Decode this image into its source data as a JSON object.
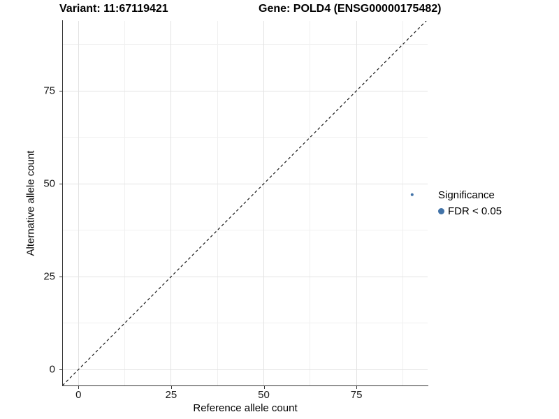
{
  "chart_data": {
    "type": "scatter",
    "titles": {
      "left": "Variant: 11:67119421",
      "right": "Gene: POLD4 (ENSG00000175482)"
    },
    "xlabel": "Reference allele count",
    "ylabel": "Alternative allele count",
    "x_ticks": [
      0,
      25,
      50,
      75
    ],
    "y_ticks": [
      0,
      25,
      50,
      75
    ],
    "minor_step": 12.5,
    "xlim": [
      -4.2,
      94.2
    ],
    "ylim": [
      -4.3,
      93.8
    ],
    "grid": true,
    "identity_line": {
      "style": "dashed",
      "equation": "y = x",
      "color": "#1a1a1a"
    },
    "series": [
      {
        "name": "FDR < 0.05",
        "color": "#4273a8",
        "point_radius": 2.2,
        "points": [
          {
            "x": 90,
            "y": 47
          }
        ]
      }
    ],
    "legend": {
      "title": "Significance",
      "position": "right",
      "items": [
        {
          "label": "FDR < 0.05",
          "color": "#4273a8"
        }
      ]
    }
  }
}
